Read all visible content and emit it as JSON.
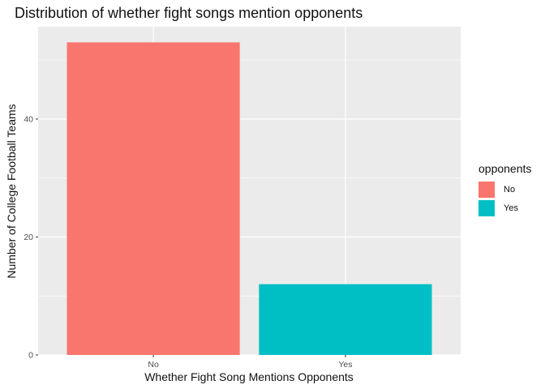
{
  "chart_data": {
    "type": "bar",
    "title": "Distribution of whether fight songs mention opponents",
    "xlabel": "Whether Fight Song Mentions Opponents",
    "ylabel": "Number of College Football Teams",
    "categories": [
      "No",
      "Yes"
    ],
    "values": [
      53,
      12
    ],
    "colors": [
      "#F8766D",
      "#00BFC4"
    ],
    "ylim": [
      0,
      55.65
    ],
    "yticks": [
      0,
      20,
      40
    ],
    "grid": true,
    "legend": {
      "title": "opponents",
      "placement": "right",
      "items": [
        {
          "label": "No",
          "color": "#F8766D"
        },
        {
          "label": "Yes",
          "color": "#00BFC4"
        }
      ]
    }
  }
}
